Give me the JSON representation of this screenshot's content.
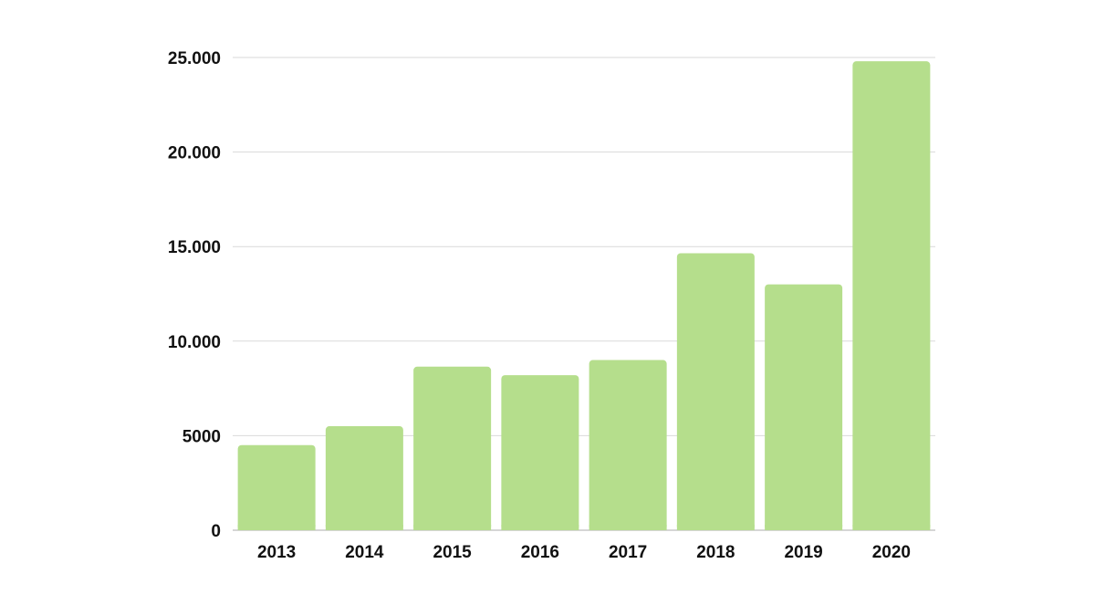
{
  "chart_data": {
    "type": "bar",
    "title": "",
    "xlabel": "",
    "ylabel": "",
    "categories": [
      "2013",
      "2014",
      "2015",
      "2016",
      "2017",
      "2018",
      "2019",
      "2020"
    ],
    "values": [
      4500,
      5500,
      8650,
      8200,
      9000,
      14650,
      13000,
      24800
    ],
    "ylim": [
      0,
      25000
    ],
    "yticks": [
      0,
      5000,
      10000,
      15000,
      20000,
      25000
    ],
    "ytick_labels": [
      "0",
      "5000",
      "10.000",
      "15.000",
      "20.000",
      "25.000"
    ],
    "grid": true,
    "legend": "none",
    "bar_color": "#b5de8c"
  }
}
